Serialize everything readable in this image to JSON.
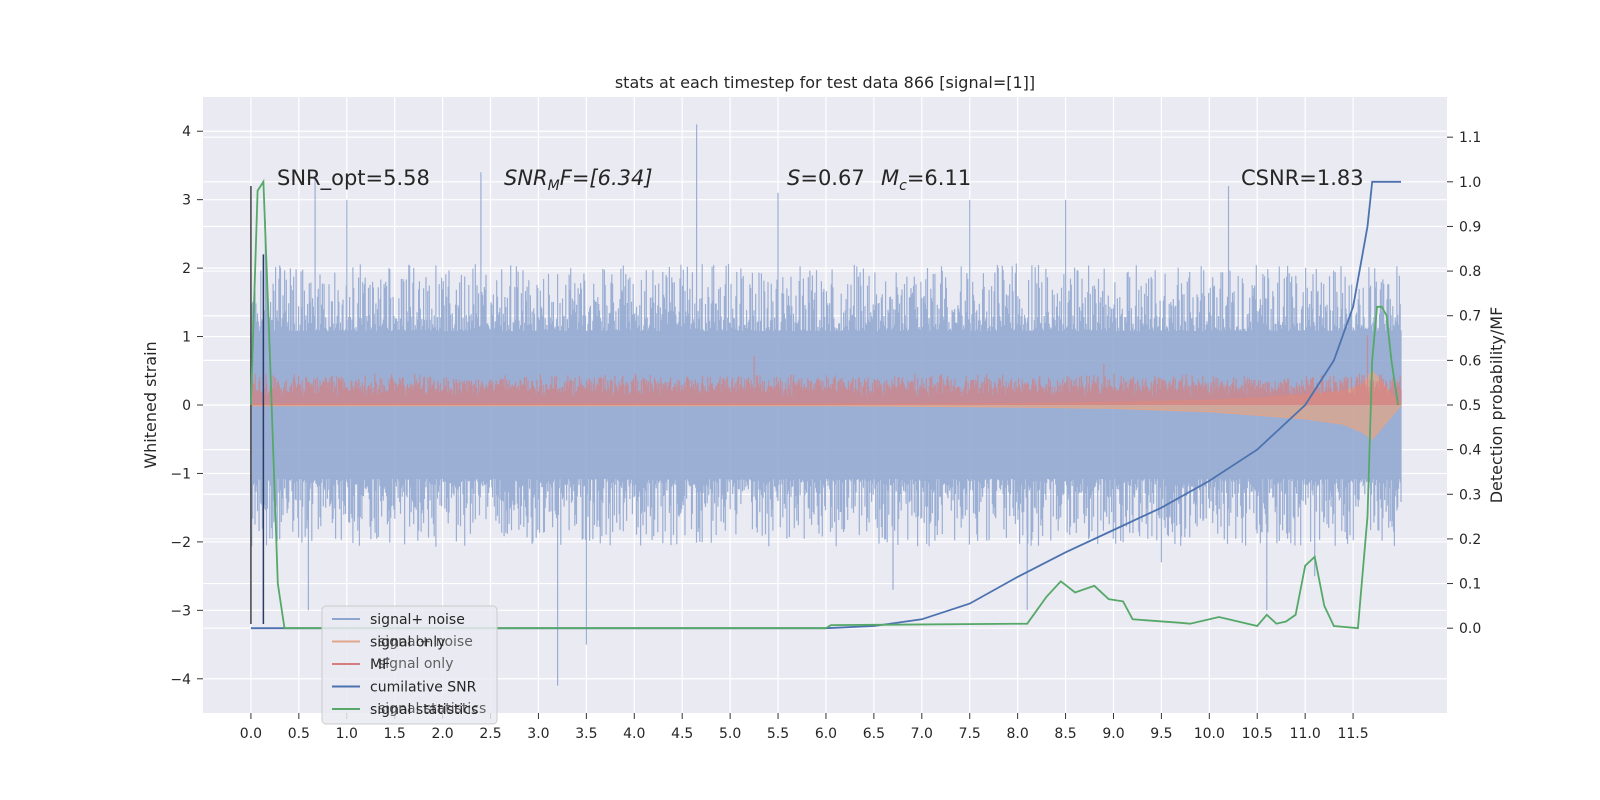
{
  "chart_data": {
    "type": "line",
    "title": "stats at each timestep for test data 866 [signal=[1]]",
    "xlabel": "",
    "ylabel_left": "Whitened strain",
    "ylabel_right": "Detection probability/MF",
    "xlim": [
      -0.5,
      12.48
    ],
    "ylim_left": [
      -4.5,
      4.5
    ],
    "ylim_right": [
      -0.19,
      1.19
    ],
    "x_ticks": [
      "0.0",
      "0.5",
      "1.0",
      "1.5",
      "2.0",
      "2.5",
      "3.0",
      "3.5",
      "4.0",
      "4.5",
      "5.0",
      "5.5",
      "6.0",
      "6.5",
      "7.0",
      "7.5",
      "8.0",
      "8.5",
      "9.0",
      "9.5",
      "10.0",
      "10.5",
      "11.0",
      "11.5"
    ],
    "y_ticks_left": [
      "4",
      "3",
      "2",
      "1",
      "0",
      "−1",
      "−2",
      "−3",
      "−4"
    ],
    "y_ticks_right": [
      "1.1",
      "1.0",
      "0.9",
      "0.8",
      "0.7",
      "0.6",
      "0.5",
      "0.4",
      "0.3",
      "0.2",
      "0.1",
      "0.0"
    ],
    "grid": true,
    "annotations": {
      "snr_opt": "SNR_opt=5.58",
      "snr_mf_main": "SNR",
      "snr_mf_sub": "M",
      "snr_mf_rest": "F=[6.34]",
      "s_main": "S",
      "s_rest": "=0.67",
      "mc_main": "M",
      "mc_sub": "c",
      "mc_rest": "=6.11",
      "csnr": "CSNR=1.83"
    },
    "legend": {
      "placement": "lower-left",
      "entries": [
        {
          "label": "signal+ noise",
          "color": "#8da5cf"
        },
        {
          "label": "signal only",
          "color": "#e0a58a"
        },
        {
          "label": "MF",
          "color": "#d67e7e"
        },
        {
          "label": "cumilative SNR",
          "color": "#4c72b0"
        },
        {
          "label": "signal statistics",
          "color": "#55a868"
        }
      ],
      "ghost_labels": [
        "signal+ noise",
        "signal only",
        "signal statistics"
      ]
    },
    "series": [
      {
        "name": "signal+ noise",
        "axis": "left",
        "color": "#8da5cf",
        "x_range": [
          0.0,
          12.0
        ],
        "envelope_upper": 1.8,
        "envelope_lower": -1.8,
        "peaks": [
          {
            "x": 0.15,
            "y": 2.7
          },
          {
            "x": 0.67,
            "y": 3.3
          },
          {
            "x": 1.0,
            "y": 3.0
          },
          {
            "x": 2.4,
            "y": 3.4
          },
          {
            "x": 4.65,
            "y": 4.1
          },
          {
            "x": 3.2,
            "y": -4.1
          },
          {
            "x": 3.5,
            "y": -3.5
          },
          {
            "x": 0.6,
            "y": -3.0
          },
          {
            "x": 9.5,
            "y": -2.3
          },
          {
            "x": 10.6,
            "y": -3.0
          },
          {
            "x": 11.1,
            "y": -2.5
          },
          {
            "x": 5.5,
            "y": 3.1
          },
          {
            "x": 7.5,
            "y": 3.0
          },
          {
            "x": 8.5,
            "y": 3.0
          },
          {
            "x": 10.2,
            "y": 3.2
          },
          {
            "x": 6.7,
            "y": -2.7
          },
          {
            "x": 8.1,
            "y": -3.0
          }
        ]
      },
      {
        "name": "signal only",
        "axis": "left",
        "color": "#e0a58a",
        "x": [
          0.0,
          6.0,
          8.0,
          9.0,
          10.0,
          10.5,
          11.0,
          11.4,
          11.6,
          11.7,
          12.0
        ],
        "upper": [
          0.01,
          0.01,
          0.02,
          0.04,
          0.07,
          0.1,
          0.15,
          0.2,
          0.3,
          0.5,
          0.0
        ],
        "lower": [
          -0.01,
          -0.01,
          -0.03,
          -0.05,
          -0.1,
          -0.15,
          -0.2,
          -0.28,
          -0.4,
          -0.5,
          0.0
        ]
      },
      {
        "name": "MF",
        "axis": "left",
        "color": "#d67e7e",
        "x_range": [
          0.0,
          12.0
        ],
        "band_upper": 0.35,
        "band_lower": 0.0,
        "peaks": [
          {
            "x": 5.25,
            "y": 0.72
          },
          {
            "x": 11.65,
            "y": 1.02
          },
          {
            "x": 8.9,
            "y": 0.6
          }
        ]
      },
      {
        "name": "cumilative SNR",
        "axis": "right",
        "color": "#4c72b0",
        "x": [
          0.0,
          6.0,
          6.5,
          7.0,
          7.5,
          8.0,
          8.5,
          9.0,
          9.5,
          10.0,
          10.5,
          11.0,
          11.3,
          11.5,
          11.65,
          11.7,
          12.0
        ],
        "y": [
          0.0,
          0.0,
          0.005,
          0.02,
          0.055,
          0.115,
          0.17,
          0.22,
          0.27,
          0.33,
          0.4,
          0.5,
          0.6,
          0.72,
          0.9,
          1.0,
          1.0
        ]
      },
      {
        "name": "signal statistics",
        "axis": "right",
        "color": "#55a868",
        "x": [
          0.0,
          0.07,
          0.13,
          0.2,
          0.28,
          0.35,
          6.0,
          6.05,
          8.1,
          8.2,
          8.3,
          8.45,
          8.6,
          8.8,
          8.95,
          9.1,
          9.2,
          9.7,
          9.8,
          10.1,
          10.2,
          10.5,
          10.6,
          10.7,
          10.8,
          10.9,
          11.0,
          11.1,
          11.2,
          11.3,
          11.55,
          11.65,
          11.7,
          11.75,
          11.8,
          11.85,
          11.9,
          11.97
        ],
        "y": [
          0.5,
          0.98,
          1.0,
          0.6,
          0.1,
          0.0,
          0.0,
          0.007,
          0.01,
          0.04,
          0.07,
          0.105,
          0.08,
          0.095,
          0.065,
          0.06,
          0.02,
          0.012,
          0.01,
          0.025,
          0.02,
          0.005,
          0.03,
          0.01,
          0.015,
          0.03,
          0.14,
          0.16,
          0.05,
          0.005,
          0.0,
          0.25,
          0.6,
          0.72,
          0.72,
          0.7,
          0.6,
          0.5
        ]
      },
      {
        "name": "black vertical line",
        "axis": "left",
        "color": "#444444",
        "x": [
          0.0,
          0.0
        ],
        "y": [
          -3.2,
          3.2
        ]
      },
      {
        "name": "navy vertical line",
        "axis": "left",
        "color": "#2b3a67",
        "x": [
          0.13,
          0.13
        ],
        "y": [
          -3.2,
          2.2
        ]
      }
    ]
  }
}
